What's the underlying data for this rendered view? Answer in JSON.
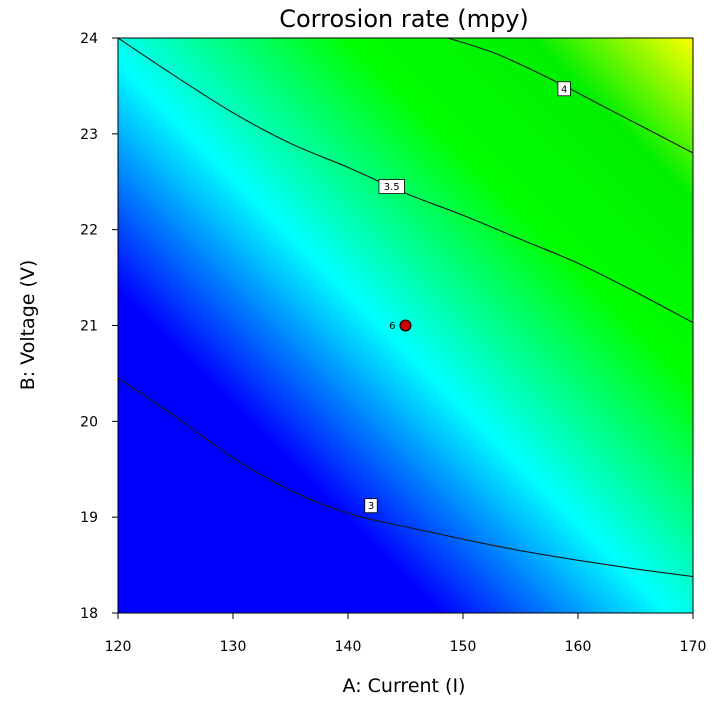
{
  "chart_data": {
    "type": "contour",
    "title": "Corrosion rate (mpy)",
    "xlabel": "A: Current (I)",
    "ylabel": "B: Voltage (V)",
    "xlim": [
      120,
      170
    ],
    "ylim": [
      18,
      24
    ],
    "xticks": [
      120,
      130,
      140,
      150,
      160,
      170
    ],
    "yticks": [
      18,
      19,
      20,
      21,
      22,
      23,
      24
    ],
    "colormap": [
      "#0000ff",
      "#00ffff",
      "#00ff00",
      "#ffff00"
    ],
    "contours": [
      {
        "level": 3,
        "label": "3",
        "label_at": [
          142,
          19.12
        ],
        "points": [
          [
            120,
            20.45
          ],
          [
            125,
            20.05
          ],
          [
            130,
            19.62
          ],
          [
            135,
            19.28
          ],
          [
            140,
            19.04
          ],
          [
            145,
            18.9
          ],
          [
            150,
            18.77
          ],
          [
            155,
            18.65
          ],
          [
            160,
            18.55
          ],
          [
            165,
            18.46
          ],
          [
            170,
            18.38
          ]
        ]
      },
      {
        "level": 3.5,
        "label": "3.5",
        "label_at": [
          143.8,
          22.45
        ],
        "points": [
          [
            120,
            24.0
          ],
          [
            125,
            23.6
          ],
          [
            130,
            23.22
          ],
          [
            135,
            22.9
          ],
          [
            140,
            22.65
          ],
          [
            145,
            22.38
          ],
          [
            150,
            22.15
          ],
          [
            155,
            21.9
          ],
          [
            160,
            21.65
          ],
          [
            165,
            21.35
          ],
          [
            170,
            21.03
          ]
        ]
      },
      {
        "level": 4,
        "label": "4",
        "label_at": [
          158.8,
          23.47
        ],
        "points": [
          [
            148.7,
            24.0
          ],
          [
            153,
            23.83
          ],
          [
            158,
            23.55
          ],
          [
            162,
            23.3
          ],
          [
            166,
            23.05
          ],
          [
            170,
            22.8
          ]
        ]
      }
    ],
    "design_points": [
      {
        "x": 145,
        "y": 21,
        "label": "6",
        "color": "#cc0000"
      }
    ]
  }
}
